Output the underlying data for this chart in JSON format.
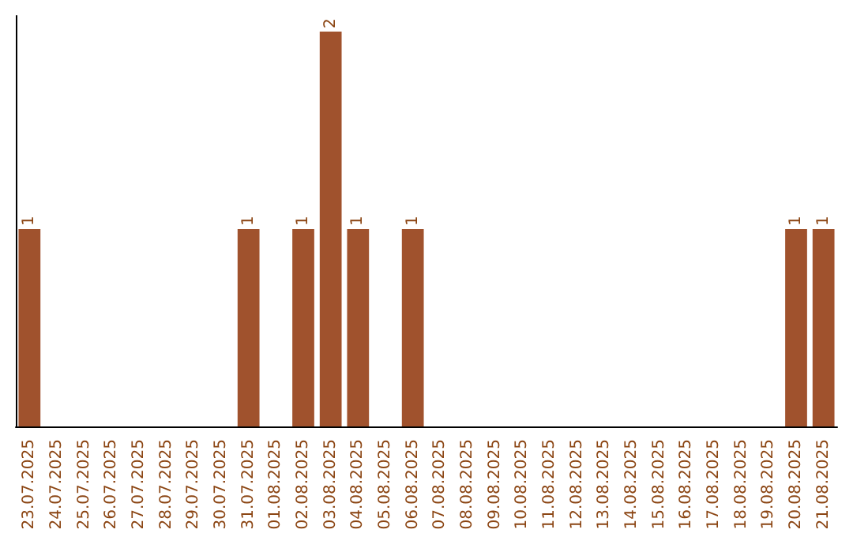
{
  "chart_data": {
    "type": "bar",
    "categories": [
      "23.07.2025",
      "24.07.2025",
      "25.07.2025",
      "26.07.2025",
      "27.07.2025",
      "28.07.2025",
      "29.07.2025",
      "30.07.2025",
      "31.07.2025",
      "01.08.2025",
      "02.08.2025",
      "03.08.2025",
      "04.08.2025",
      "05.08.2025",
      "06.08.2025",
      "07.08.2025",
      "08.08.2025",
      "09.08.2025",
      "10.08.2025",
      "11.08.2025",
      "12.08.2025",
      "13.08.2025",
      "14.08.2025",
      "15.08.2025",
      "16.08.2025",
      "17.08.2025",
      "18.08.2025",
      "19.08.2025",
      "20.08.2025",
      "21.08.2025"
    ],
    "values": [
      1,
      0,
      0,
      0,
      0,
      0,
      0,
      0,
      1,
      0,
      1,
      2,
      1,
      0,
      1,
      0,
      0,
      0,
      0,
      0,
      0,
      0,
      0,
      0,
      0,
      0,
      0,
      0,
      1,
      1
    ],
    "value_labels": [
      "1",
      null,
      null,
      null,
      null,
      null,
      null,
      null,
      "1",
      null,
      "1",
      "2",
      "1",
      null,
      "1",
      null,
      null,
      null,
      null,
      null,
      null,
      null,
      null,
      null,
      null,
      null,
      null,
      null,
      "1",
      "1"
    ],
    "color": "#a0522d",
    "ylim": [
      0,
      2
    ],
    "tick_labels": "x",
    "grid": false
  }
}
